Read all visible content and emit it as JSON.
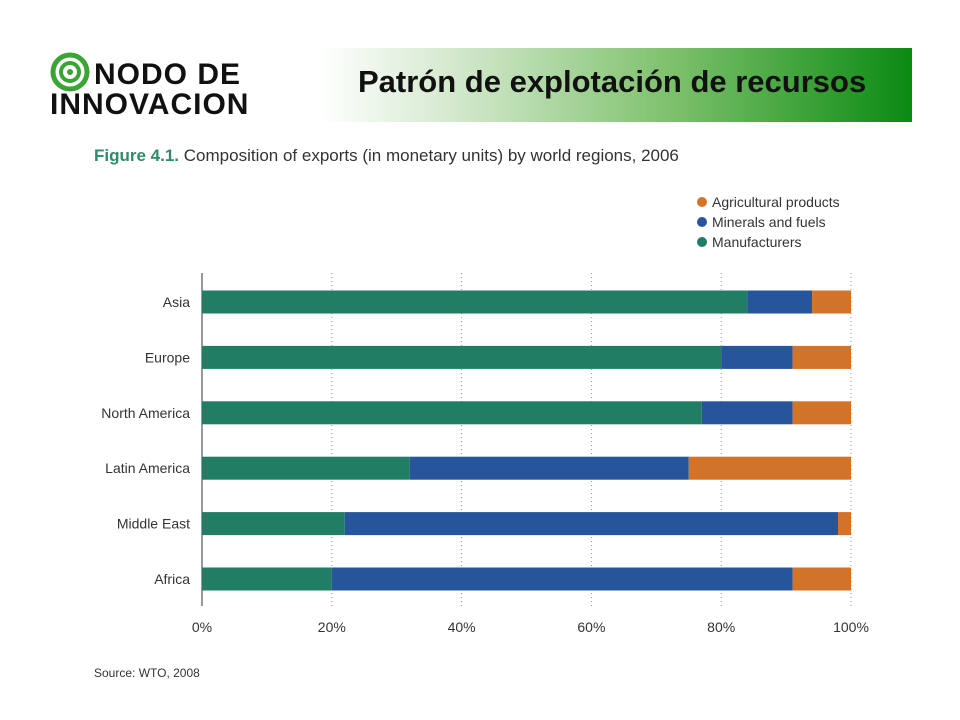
{
  "header": {
    "logo_text_line1": "NODO DE",
    "logo_text_line2": "INNOVACION",
    "title": "Patrón de explotación de recursos"
  },
  "figure": {
    "label": "Figure 4.1.",
    "caption": "Composition of exports (in monetary units) by world regions, 2006",
    "source": "Source: WTO, 2008"
  },
  "colors": {
    "manufacturers": "#217d64",
    "minerals": "#26559b",
    "agricultural": "#d2732a",
    "header_green": "#0a8a12"
  },
  "chart_data": {
    "type": "bar",
    "orientation": "horizontal",
    "stacked": true,
    "categories": [
      "Asia",
      "Europe",
      "North America",
      "Latin America",
      "Middle East",
      "Africa"
    ],
    "series": [
      {
        "name": "Manufacturers",
        "values": [
          84,
          80,
          77,
          32,
          22,
          20
        ]
      },
      {
        "name": "Minerals and fuels",
        "values": [
          10,
          11,
          14,
          43,
          76,
          71
        ]
      },
      {
        "name": "Agricultural products",
        "values": [
          6,
          9,
          9,
          25,
          2,
          9
        ]
      }
    ],
    "legend": [
      "Agricultural products",
      "Minerals and fuels",
      "Manufacturers"
    ],
    "legend_position": "top-right",
    "x_ticks": [
      "0%",
      "20%",
      "40%",
      "60%",
      "80%",
      "100%"
    ],
    "xlim": [
      0,
      100
    ],
    "grid": "vertical dotted"
  }
}
